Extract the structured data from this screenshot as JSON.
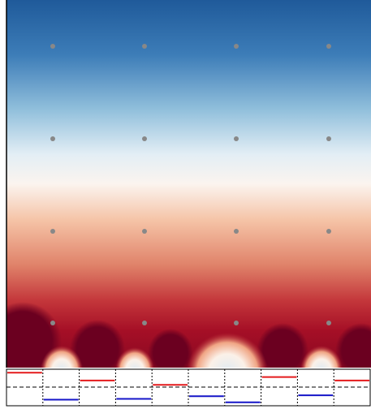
{
  "chart_data": {
    "type": "segments",
    "categories": [
      null,
      null,
      null,
      null,
      null,
      null,
      null,
      null,
      null,
      null
    ],
    "values": [
      0.85,
      -0.7,
      0.4,
      -0.65,
      0.15,
      -0.5,
      -0.85,
      0.6,
      -0.45,
      0.4
    ],
    "positive_color": "#e41a1c",
    "negative_color": "#1515c8",
    "ylim": [
      -1,
      1
    ]
  }
}
